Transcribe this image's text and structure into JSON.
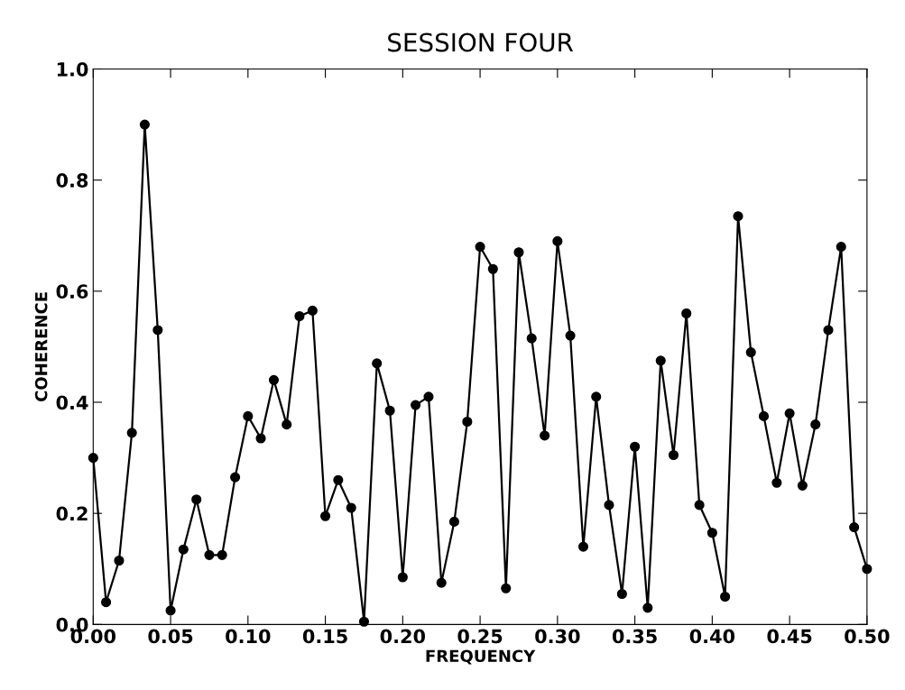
{
  "chart_data": {
    "type": "line",
    "title": "SESSION FOUR",
    "xlabel": "FREQUENCY",
    "ylabel": "COHERENCE",
    "x": [
      0,
      0.0083,
      0.0167,
      0.025,
      0.0333,
      0.0417,
      0.05,
      0.0583,
      0.0667,
      0.075,
      0.0833,
      0.0917,
      0.1,
      0.1083,
      0.1167,
      0.125,
      0.1333,
      0.1417,
      0.15,
      0.1583,
      0.1667,
      0.175,
      0.1833,
      0.1917,
      0.2,
      0.2083,
      0.2167,
      0.225,
      0.2333,
      0.2417,
      0.25,
      0.2583,
      0.2667,
      0.275,
      0.2833,
      0.2917,
      0.3,
      0.3083,
      0.3167,
      0.325,
      0.3333,
      0.3417,
      0.35,
      0.3583,
      0.3667,
      0.375,
      0.3833,
      0.3917,
      0.4,
      0.4083,
      0.4167,
      0.425,
      0.4333,
      0.4417,
      0.45,
      0.4583,
      0.4667,
      0.475,
      0.4833,
      0.4917,
      0.5
    ],
    "series": [
      {
        "color": "#000000",
        "values": [
          0.3,
          0.04,
          0.115,
          0.345,
          0.9,
          0.53,
          0.025,
          0.135,
          0.225,
          0.125,
          0.125,
          0.265,
          0.375,
          0.335,
          0.44,
          0.36,
          0.555,
          0.565,
          0.195,
          0.26,
          0.21,
          0.005,
          0.47,
          0.385,
          0.085,
          0.395,
          0.41,
          0.075,
          0.185,
          0.365,
          0.68,
          0.64,
          0.065,
          0.67,
          0.515,
          0.34,
          0.69,
          0.52,
          0.14,
          0.41,
          0.215,
          0.055,
          0.32,
          0.03,
          0.475,
          0.305,
          0.56,
          0.215,
          0.165,
          0.05,
          0.735,
          0.49,
          0.375,
          0.255,
          0.38,
          0.25,
          0.36,
          0.53,
          0.68,
          0.175,
          0.1
        ]
      }
    ],
    "xlim": [
      0,
      0.5
    ],
    "ylim": [
      0,
      1.0
    ],
    "xticks": [
      {
        "value": 0,
        "label": "0.00"
      },
      0.05,
      {
        "value": 0.1,
        "label": "0.10"
      },
      0.15,
      {
        "value": 0.2,
        "label": "0.20"
      },
      0.25,
      {
        "value": 0.3,
        "label": "0.30"
      },
      0.35,
      {
        "value": 0.4,
        "label": "0.40"
      },
      0.45,
      {
        "value": 0.5,
        "label": "0.50"
      }
    ],
    "yticks": [
      {
        "value": 0,
        "label": "0.0"
      },
      0.2,
      0.4,
      0.6,
      0.8,
      {
        "value": 1.0,
        "label": "1.0"
      }
    ],
    "marker": "circle",
    "line_style": "solid",
    "grid": false,
    "legend": false
  }
}
